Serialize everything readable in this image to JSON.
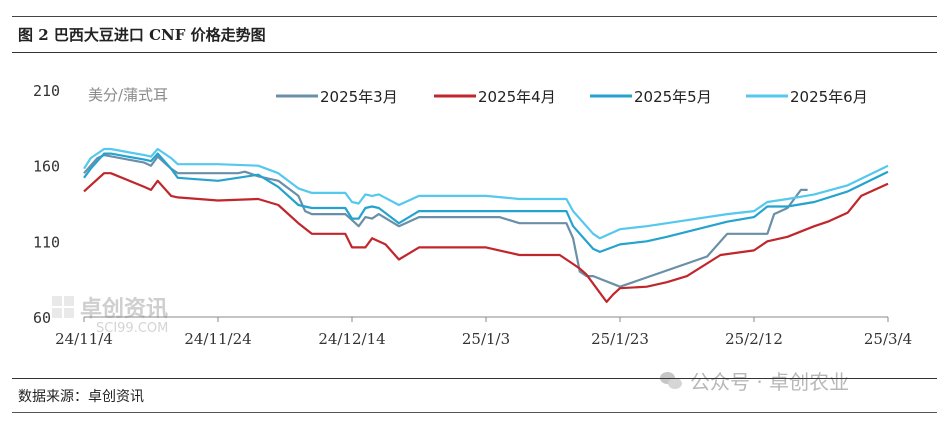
{
  "header": {
    "title": "图 2 巴西大豆进口 CNF 价格走势图"
  },
  "footer": {
    "source": "数据来源：卓创资讯"
  },
  "watermarks": {
    "chart_mark": "卓创资讯",
    "chart_mark_sub": "SCI99.COM",
    "wechat": "公众号 · 卓创农业"
  },
  "colors": {
    "march": "#6a8fa8",
    "april": "#c0262b",
    "may": "#25a3cf",
    "june": "#55c8ee"
  },
  "chart_data": {
    "type": "line",
    "ylabel": "美分/蒲式耳",
    "ylim": [
      60,
      210
    ],
    "yticks": [
      60,
      110,
      160,
      210
    ],
    "xlim": [
      "24/11/4",
      "25/3/4"
    ],
    "xticks": [
      "24/11/4",
      "24/11/24",
      "24/12/14",
      "25/1/3",
      "25/1/23",
      "25/2/12",
      "25/3/4"
    ],
    "legend": "top",
    "series": [
      {
        "name": "2025年3月",
        "color": "#6a8fa8",
        "points": [
          [
            "24/11/4",
            155
          ],
          [
            "24/11/6",
            165
          ],
          [
            "24/11/7",
            167
          ],
          [
            "24/11/13",
            162
          ],
          [
            "24/11/14",
            160
          ],
          [
            "24/11/15",
            166
          ],
          [
            "24/11/17",
            158
          ],
          [
            "24/11/18",
            155
          ],
          [
            "24/11/24",
            155
          ],
          [
            "24/11/27",
            155
          ],
          [
            "24/11/28",
            156
          ],
          [
            "24/11/30",
            153
          ],
          [
            "24/12/3",
            150
          ],
          [
            "24/12/6",
            140
          ],
          [
            "24/12/7",
            130
          ],
          [
            "24/12/8",
            128
          ],
          [
            "24/12/13",
            128
          ],
          [
            "24/12/14",
            124
          ],
          [
            "24/12/15",
            120
          ],
          [
            "24/12/16",
            126
          ],
          [
            "24/12/17",
            125
          ],
          [
            "24/12/18",
            128
          ],
          [
            "24/12/21",
            120
          ],
          [
            "24/12/22",
            122
          ],
          [
            "24/12/24",
            126
          ],
          [
            "24/12/30",
            126
          ],
          [
            "25/1/3",
            126
          ],
          [
            "25/1/5",
            126
          ],
          [
            "25/1/8",
            122
          ],
          [
            "25/1/15",
            122
          ],
          [
            "25/1/16",
            112
          ],
          [
            "25/1/17",
            90
          ],
          [
            "25/1/18",
            87
          ],
          [
            "25/1/19",
            87
          ],
          [
            "25/1/23",
            80
          ],
          [
            "25/2/5",
            100
          ],
          [
            "25/2/8",
            115
          ],
          [
            "25/2/14",
            115
          ],
          [
            "25/2/15",
            128
          ],
          [
            "25/2/17",
            132
          ],
          [
            "25/2/19",
            144
          ],
          [
            "25/2/20",
            144
          ]
        ]
      },
      {
        "name": "2025年4月",
        "color": "#c0262b",
        "points": [
          [
            "24/11/4",
            143
          ],
          [
            "24/11/5",
            147
          ],
          [
            "24/11/7",
            155
          ],
          [
            "24/11/8",
            155
          ],
          [
            "24/11/13",
            146
          ],
          [
            "24/11/14",
            144
          ],
          [
            "24/11/15",
            150
          ],
          [
            "24/11/17",
            140
          ],
          [
            "24/11/18",
            139
          ],
          [
            "24/11/24",
            137
          ],
          [
            "24/11/30",
            138
          ],
          [
            "24/12/3",
            134
          ],
          [
            "24/12/6",
            122
          ],
          [
            "24/12/8",
            115
          ],
          [
            "24/12/13",
            115
          ],
          [
            "24/12/14",
            106
          ],
          [
            "24/12/16",
            106
          ],
          [
            "24/12/17",
            112
          ],
          [
            "24/12/19",
            108
          ],
          [
            "24/12/21",
            98
          ],
          [
            "24/12/24",
            106
          ],
          [
            "24/12/30",
            106
          ],
          [
            "25/1/3",
            106
          ],
          [
            "25/1/8",
            101
          ],
          [
            "25/1/14",
            101
          ],
          [
            "25/1/16",
            95
          ],
          [
            "25/1/17",
            92
          ],
          [
            "25/1/18",
            88
          ],
          [
            "25/1/19",
            82
          ],
          [
            "25/1/20",
            76
          ],
          [
            "25/1/21",
            70
          ],
          [
            "25/1/22",
            75
          ],
          [
            "25/1/23",
            79
          ],
          [
            "25/1/27",
            80
          ],
          [
            "25/1/30",
            83
          ],
          [
            "25/2/2",
            87
          ],
          [
            "25/2/7",
            101
          ],
          [
            "25/2/12",
            104
          ],
          [
            "25/2/14",
            110
          ],
          [
            "25/2/17",
            113
          ],
          [
            "25/2/21",
            120
          ],
          [
            "25/2/23",
            123
          ],
          [
            "25/2/26",
            129
          ],
          [
            "25/2/28",
            140
          ],
          [
            "25/3/4",
            148
          ]
        ]
      },
      {
        "name": "2025年5月",
        "color": "#25a3cf",
        "points": [
          [
            "24/11/4",
            152
          ],
          [
            "24/11/5",
            158
          ],
          [
            "24/11/7",
            168
          ],
          [
            "24/11/8",
            168
          ],
          [
            "24/11/13",
            164
          ],
          [
            "24/11/14",
            163
          ],
          [
            "24/11/15",
            168
          ],
          [
            "24/11/17",
            158
          ],
          [
            "24/11/18",
            152
          ],
          [
            "24/11/24",
            150
          ],
          [
            "24/11/30",
            154
          ],
          [
            "24/12/3",
            146
          ],
          [
            "24/12/6",
            134
          ],
          [
            "24/12/8",
            132
          ],
          [
            "24/12/13",
            132
          ],
          [
            "24/12/14",
            125
          ],
          [
            "24/12/15",
            125
          ],
          [
            "24/12/16",
            132
          ],
          [
            "24/12/17",
            133
          ],
          [
            "24/12/18",
            132
          ],
          [
            "24/12/21",
            122
          ],
          [
            "24/12/24",
            130
          ],
          [
            "24/12/30",
            130
          ],
          [
            "25/1/3",
            130
          ],
          [
            "25/1/8",
            130
          ],
          [
            "25/1/15",
            130
          ],
          [
            "25/1/16",
            120
          ],
          [
            "25/1/19",
            105
          ],
          [
            "25/1/20",
            103
          ],
          [
            "25/1/23",
            108
          ],
          [
            "25/1/27",
            110
          ],
          [
            "25/1/30",
            113
          ],
          [
            "25/2/8",
            123
          ],
          [
            "25/2/12",
            126
          ],
          [
            "25/2/14",
            133
          ],
          [
            "25/2/17",
            133
          ],
          [
            "25/2/21",
            136
          ],
          [
            "25/2/26",
            143
          ],
          [
            "25/3/4",
            156
          ]
        ]
      },
      {
        "name": "2025年6月",
        "color": "#55c8ee",
        "points": [
          [
            "24/11/4",
            158
          ],
          [
            "24/11/5",
            165
          ],
          [
            "24/11/7",
            171
          ],
          [
            "24/11/8",
            171
          ],
          [
            "24/11/13",
            167
          ],
          [
            "24/11/14",
            166
          ],
          [
            "24/11/15",
            171
          ],
          [
            "24/11/17",
            165
          ],
          [
            "24/11/18",
            161
          ],
          [
            "24/11/24",
            161
          ],
          [
            "24/11/30",
            160
          ],
          [
            "24/12/3",
            155
          ],
          [
            "24/12/6",
            145
          ],
          [
            "24/12/8",
            142
          ],
          [
            "24/12/13",
            142
          ],
          [
            "24/12/14",
            136
          ],
          [
            "24/12/15",
            135
          ],
          [
            "24/12/16",
            141
          ],
          [
            "24/12/17",
            140
          ],
          [
            "24/12/18",
            141
          ],
          [
            "24/12/21",
            134
          ],
          [
            "24/12/24",
            140
          ],
          [
            "24/12/30",
            140
          ],
          [
            "25/1/3",
            140
          ],
          [
            "25/1/8",
            138
          ],
          [
            "25/1/15",
            138
          ],
          [
            "25/1/16",
            130
          ],
          [
            "25/1/19",
            115
          ],
          [
            "25/1/20",
            112
          ],
          [
            "25/1/23",
            118
          ],
          [
            "25/1/27",
            120
          ],
          [
            "25/1/30",
            122
          ],
          [
            "25/2/8",
            128
          ],
          [
            "25/2/12",
            130
          ],
          [
            "25/2/14",
            136
          ],
          [
            "25/2/17",
            138
          ],
          [
            "25/2/21",
            141
          ],
          [
            "25/2/26",
            147
          ],
          [
            "25/3/4",
            160
          ]
        ]
      }
    ]
  }
}
